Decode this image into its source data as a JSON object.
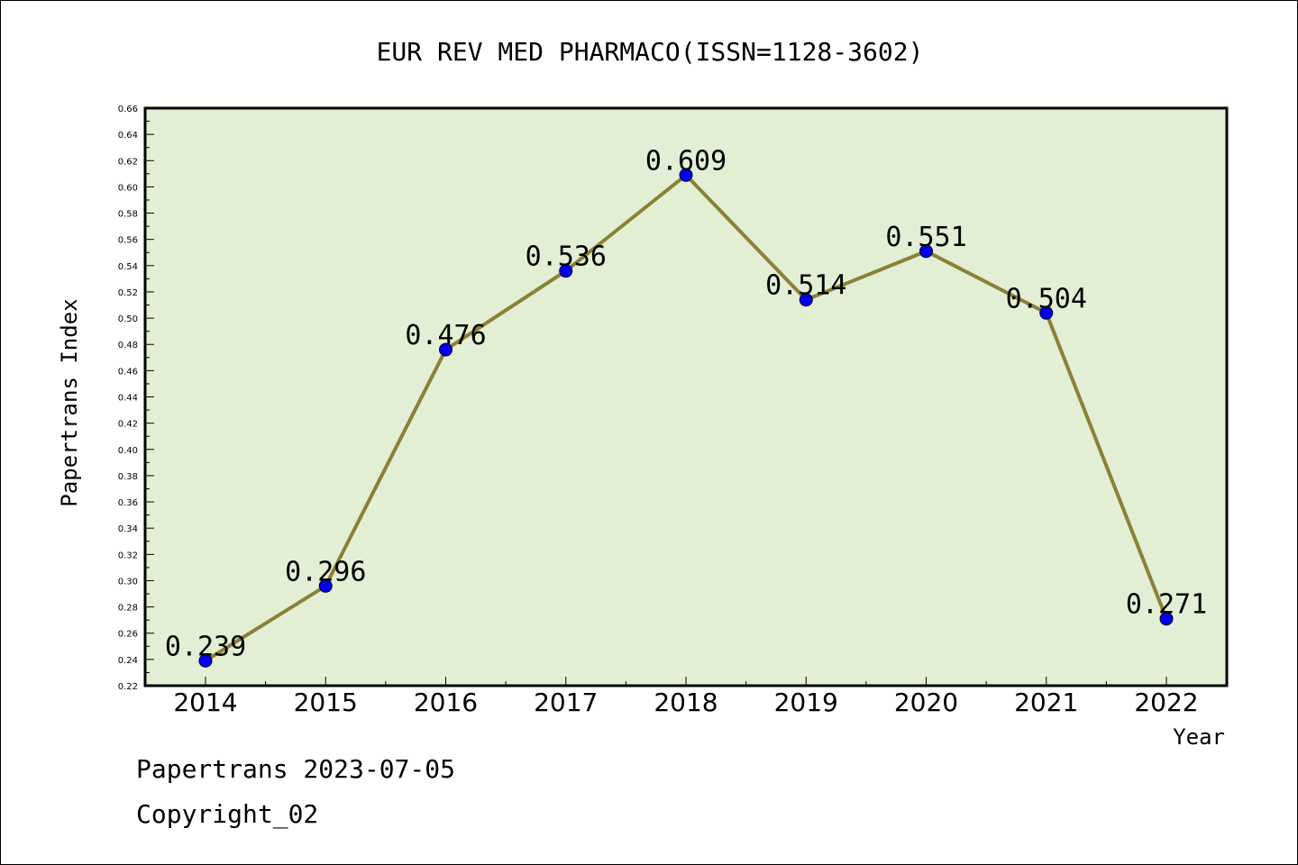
{
  "chart_data": {
    "type": "line",
    "title": "EUR REV MED PHARMACO(ISSN=1128-3602)",
    "xlabel": "Year",
    "ylabel": "Papertrans Index",
    "categories": [
      "2014",
      "2015",
      "2016",
      "2017",
      "2018",
      "2019",
      "2020",
      "2021",
      "2022"
    ],
    "values": [
      0.239,
      0.296,
      0.476,
      0.536,
      0.609,
      0.514,
      0.551,
      0.504,
      0.271
    ],
    "data_labels": [
      "0.239",
      "0.296",
      "0.476",
      "0.536",
      "0.609",
      "0.514",
      "0.551",
      "0.504",
      "0.271"
    ],
    "ylim": [
      0.22,
      0.66
    ],
    "yticks": [
      "0.22",
      "0.24",
      "0.26",
      "0.28",
      "0.30",
      "0.32",
      "0.34",
      "0.36",
      "0.38",
      "0.40",
      "0.42",
      "0.44",
      "0.46",
      "0.48",
      "0.50",
      "0.52",
      "0.54",
      "0.56",
      "0.58",
      "0.60",
      "0.62",
      "0.64",
      "0.66"
    ],
    "grid": false,
    "colors": {
      "plot_background": "#e2efd5",
      "line": "#8b8036",
      "marker": "#0000ee"
    }
  },
  "footer": {
    "date": "Papertrans 2023-07-05",
    "copyright": "Copyright_02"
  }
}
